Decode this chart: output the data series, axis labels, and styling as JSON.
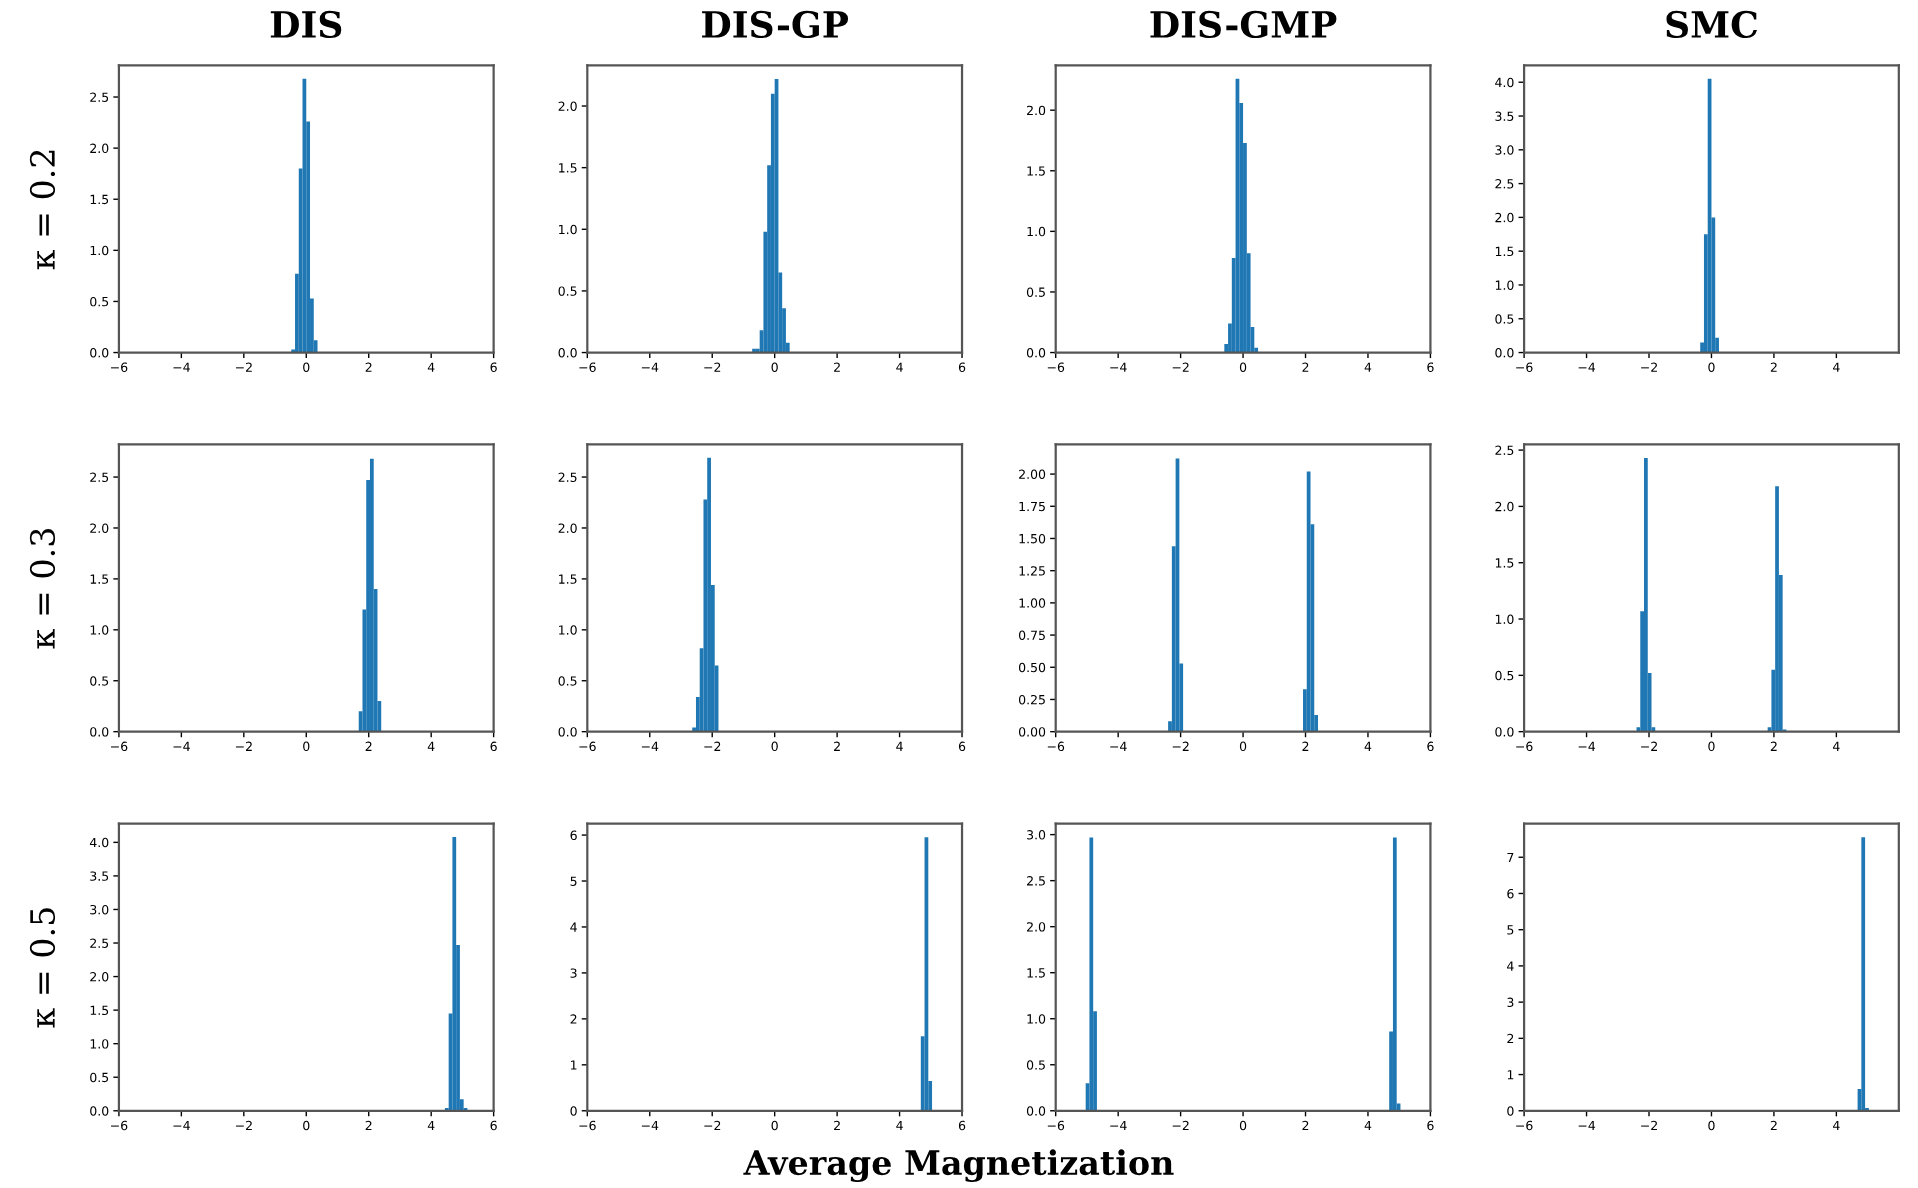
{
  "chart_data": [
    {
      "type": "histogram",
      "title": "DIS",
      "ylabel": "κ = 0.2",
      "color": "#1f77b4",
      "bins": [
        -0.48,
        -0.36,
        -0.24,
        -0.12,
        0,
        0.12,
        0.24,
        0.36
      ],
      "values": [
        0.03,
        0.77,
        1.8,
        2.68,
        2.26,
        0.53,
        0.12
      ],
      "xlim": [
        -6,
        6
      ],
      "xticks": [
        {
          "value": -6,
          "label": "−6"
        },
        {
          "value": -4,
          "label": "−4"
        },
        {
          "value": -2,
          "label": "−2"
        },
        0,
        2,
        4,
        6
      ],
      "ylim": [
        0,
        2.81
      ],
      "yticks": [
        {
          "value": 0,
          "label": "0.0"
        },
        0.5,
        {
          "value": 1,
          "label": "1.0"
        },
        1.5,
        {
          "value": 2,
          "label": "2.0"
        },
        2.5
      ]
    },
    {
      "type": "histogram",
      "title": "DIS-GP",
      "color": "#1f77b4",
      "bins": [
        -0.72,
        -0.6,
        -0.48,
        -0.36,
        -0.24,
        -0.12,
        0,
        0.12,
        0.24,
        0.36,
        0.48
      ],
      "values": [
        0.03,
        0.03,
        0.18,
        0.98,
        1.52,
        2.1,
        2.22,
        0.65,
        0.36,
        0.08
      ],
      "xlim": [
        -6,
        6
      ],
      "xticks": [
        {
          "value": -6,
          "label": "−6"
        },
        {
          "value": -4,
          "label": "−4"
        },
        {
          "value": -2,
          "label": "−2"
        },
        0,
        2,
        4,
        6
      ],
      "ylim": [
        0,
        2.33
      ],
      "yticks": [
        {
          "value": 0,
          "label": "0.0"
        },
        0.5,
        {
          "value": 1,
          "label": "1.0"
        },
        1.5,
        {
          "value": 2,
          "label": "2.0"
        }
      ]
    },
    {
      "type": "histogram",
      "title": "DIS-GMP",
      "color": "#1f77b4",
      "bins": [
        -0.6,
        -0.48,
        -0.36,
        -0.24,
        -0.12,
        0,
        0.12,
        0.24,
        0.36,
        0.48
      ],
      "values": [
        0.07,
        0.24,
        0.78,
        2.26,
        2.06,
        1.73,
        0.82,
        0.21,
        0.04
      ],
      "xlim": [
        -6,
        6
      ],
      "xticks": [
        {
          "value": -6,
          "label": "−6"
        },
        {
          "value": -4,
          "label": "−4"
        },
        {
          "value": -2,
          "label": "−2"
        },
        0,
        2,
        4,
        6
      ],
      "ylim": [
        0,
        2.37
      ],
      "yticks": [
        {
          "value": 0,
          "label": "0.0"
        },
        0.5,
        {
          "value": 1,
          "label": "1.0"
        },
        1.5,
        {
          "value": 2,
          "label": "2.0"
        }
      ]
    },
    {
      "type": "histogram",
      "title": "SMC",
      "color": "#1f77b4",
      "bins": [
        -0.36,
        -0.24,
        -0.12,
        0,
        0.12,
        0.24
      ],
      "values": [
        0.15,
        1.75,
        4.05,
        2.0,
        0.22
      ],
      "xlim": [
        -6,
        6
      ],
      "xticks": [
        {
          "value": -6,
          "label": "−6"
        },
        {
          "value": -4,
          "label": "−4"
        },
        {
          "value": -2,
          "label": "−2"
        },
        0,
        2,
        4
      ],
      "ylim": [
        0,
        4.25
      ],
      "yticks": [
        {
          "value": 0,
          "label": "0.0"
        },
        0.5,
        {
          "value": 1,
          "label": "1.0"
        },
        1.5,
        {
          "value": 2,
          "label": "2.0"
        },
        2.5,
        {
          "value": 3,
          "label": "3.0"
        },
        3.5,
        {
          "value": 4,
          "label": "4.0"
        }
      ]
    },
    {
      "type": "histogram",
      "ylabel": "κ = 0.3",
      "color": "#1f77b4",
      "bins": [
        1.68,
        1.8,
        1.92,
        2.04,
        2.16,
        2.28,
        2.4
      ],
      "values": [
        0.2,
        1.2,
        2.47,
        2.68,
        1.4,
        0.3
      ],
      "xlim": [
        -6,
        6
      ],
      "xticks": [
        {
          "value": -6,
          "label": "−6"
        },
        {
          "value": -4,
          "label": "−4"
        },
        {
          "value": -2,
          "label": "−2"
        },
        0,
        2,
        4,
        6
      ],
      "ylim": [
        0,
        2.82
      ],
      "yticks": [
        {
          "value": 0,
          "label": "0.0"
        },
        0.5,
        {
          "value": 1,
          "label": "1.0"
        },
        1.5,
        {
          "value": 2,
          "label": "2.0"
        },
        2.5
      ]
    },
    {
      "type": "histogram",
      "color": "#1f77b4",
      "bins": [
        -2.64,
        -2.52,
        -2.4,
        -2.28,
        -2.16,
        -2.04,
        -1.92,
        -1.8
      ],
      "values": [
        0.04,
        0.34,
        0.82,
        2.28,
        2.69,
        1.44,
        0.65
      ],
      "xlim": [
        -6,
        6
      ],
      "xticks": [
        {
          "value": -6,
          "label": "−6"
        },
        {
          "value": -4,
          "label": "−4"
        },
        {
          "value": -2,
          "label": "−2"
        },
        0,
        2,
        4,
        6
      ],
      "ylim": [
        0,
        2.82
      ],
      "yticks": [
        {
          "value": 0,
          "label": "0.0"
        },
        0.5,
        {
          "value": 1,
          "label": "1.0"
        },
        1.5,
        {
          "value": 2,
          "label": "2.0"
        },
        2.5
      ]
    },
    {
      "type": "histogram",
      "color": "#1f77b4",
      "bins": [
        -2.4,
        -2.28,
        -2.16,
        -2.04,
        -1.92,
        1.92,
        2.04,
        2.16,
        2.28,
        2.4
      ],
      "values": [
        0.08,
        1.44,
        2.12,
        0.53,
        0,
        0.33,
        2.02,
        1.61,
        0.13
      ],
      "xlim": [
        -6,
        6
      ],
      "xticks": [
        {
          "value": -6,
          "label": "−6"
        },
        {
          "value": -4,
          "label": "−4"
        },
        {
          "value": -2,
          "label": "−2"
        },
        0,
        2,
        4,
        6
      ],
      "ylim": [
        0,
        2.23
      ],
      "yticks": [
        {
          "value": 0,
          "label": "0.00"
        },
        0.25,
        {
          "value": 0.5,
          "label": "0.50"
        },
        0.75,
        {
          "value": 1,
          "label": "1.00"
        },
        1.25,
        {
          "value": 1.5,
          "label": "1.50"
        },
        1.75,
        {
          "value": 2,
          "label": "2.00"
        }
      ]
    },
    {
      "type": "histogram",
      "color": "#1f77b4",
      "bins": [
        -2.4,
        -2.28,
        -2.16,
        -2.04,
        -1.92,
        -1.8,
        1.8,
        1.92,
        2.04,
        2.16,
        2.28,
        2.4
      ],
      "values": [
        0.04,
        1.07,
        2.43,
        0.52,
        0.04,
        0,
        0.04,
        0.55,
        2.18,
        1.39,
        0.02
      ],
      "xlim": [
        -6,
        6
      ],
      "xticks": [
        {
          "value": -6,
          "label": "−6"
        },
        {
          "value": -4,
          "label": "−4"
        },
        {
          "value": -2,
          "label": "−2"
        },
        0,
        2,
        4
      ],
      "ylim": [
        0,
        2.55
      ],
      "yticks": [
        {
          "value": 0,
          "label": "0.0"
        },
        0.5,
        {
          "value": 1,
          "label": "1.0"
        },
        1.5,
        {
          "value": 2,
          "label": "2.0"
        },
        2.5
      ]
    },
    {
      "type": "histogram",
      "ylabel": "κ = 0.5",
      "color": "#1f77b4",
      "bins": [
        4.44,
        4.56,
        4.68,
        4.8,
        4.92,
        5.04,
        5.16
      ],
      "values": [
        0.04,
        1.45,
        4.08,
        2.47,
        0.17,
        0.04
      ],
      "xlim": [
        -6,
        6
      ],
      "xticks": [
        {
          "value": -6,
          "label": "−6"
        },
        {
          "value": -4,
          "label": "−4"
        },
        {
          "value": -2,
          "label": "−2"
        },
        0,
        2,
        4,
        6
      ],
      "ylim": [
        0,
        4.28
      ],
      "yticks": [
        {
          "value": 0,
          "label": "0.0"
        },
        0.5,
        {
          "value": 1,
          "label": "1.0"
        },
        1.5,
        {
          "value": 2,
          "label": "2.0"
        },
        2.5,
        {
          "value": 3,
          "label": "3.0"
        },
        3.5,
        {
          "value": 4,
          "label": "4.0"
        }
      ]
    },
    {
      "type": "histogram",
      "xlabel": "Average Magnetization",
      "color": "#1f77b4",
      "bins": [
        4.68,
        4.8,
        4.92,
        5.04
      ],
      "values": [
        1.62,
        5.95,
        0.65
      ],
      "xlim": [
        -6,
        6
      ],
      "xticks": [
        {
          "value": -6,
          "label": "−6"
        },
        {
          "value": -4,
          "label": "−4"
        },
        {
          "value": -2,
          "label": "−2"
        },
        0,
        2,
        4,
        6
      ],
      "ylim": [
        0,
        6.25
      ],
      "yticks": [
        0,
        1,
        2,
        3,
        4,
        5,
        6
      ]
    },
    {
      "type": "histogram",
      "color": "#1f77b4",
      "bins": [
        -5.04,
        -4.92,
        -4.8,
        -4.68,
        4.68,
        4.8,
        4.92,
        5.04
      ],
      "values": [
        0.3,
        2.97,
        1.08,
        0,
        0.86,
        2.97,
        0.08
      ],
      "xlim": [
        -6,
        6
      ],
      "xticks": [
        {
          "value": -6,
          "label": "−6"
        },
        {
          "value": -4,
          "label": "−4"
        },
        {
          "value": -2,
          "label": "−2"
        },
        0,
        2,
        4,
        6
      ],
      "ylim": [
        0,
        3.12
      ],
      "yticks": [
        {
          "value": 0,
          "label": "0.0"
        },
        0.5,
        {
          "value": 1,
          "label": "1.0"
        },
        1.5,
        {
          "value": 2,
          "label": "2.0"
        },
        2.5,
        {
          "value": 3,
          "label": "3.0"
        }
      ]
    },
    {
      "type": "histogram",
      "color": "#1f77b4",
      "bins": [
        4.68,
        4.8,
        4.92,
        5.04
      ],
      "values": [
        0.6,
        7.55,
        0.08
      ],
      "xlim": [
        -6,
        6
      ],
      "xticks": [
        {
          "value": -6,
          "label": "−6"
        },
        {
          "value": -4,
          "label": "−4"
        },
        {
          "value": -2,
          "label": "−2"
        },
        0,
        2,
        4
      ],
      "ylim": [
        0,
        7.93
      ],
      "yticks": [
        0,
        1,
        2,
        3,
        4,
        5,
        6,
        7
      ]
    }
  ]
}
